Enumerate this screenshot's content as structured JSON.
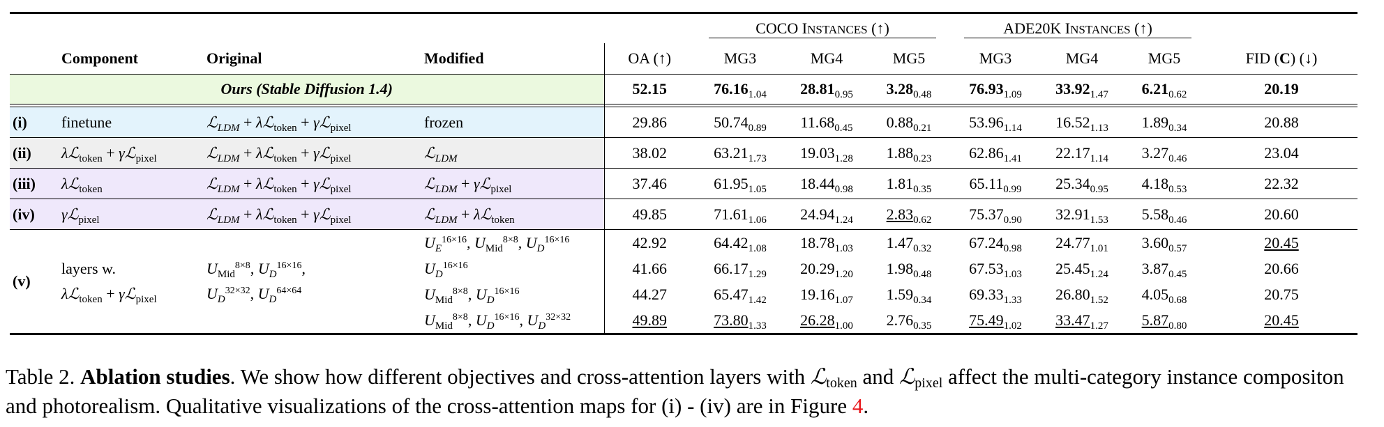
{
  "headers": {
    "group_coco": "COCO Instances (↑)",
    "group_ade": "ADE20K Instances (↑)",
    "component": "Component",
    "original": "Original",
    "modified": "Modified",
    "oa": "OA (↑)",
    "mg3": "MG3",
    "mg4": "MG4",
    "mg5": "MG5",
    "fid": "FID (C) (↓)"
  },
  "ours": {
    "label": "Ours (Stable Diffusion 1.4)",
    "oa": "52.15",
    "coco": [
      [
        "76.16",
        "1.04"
      ],
      [
        "28.81",
        "0.95"
      ],
      [
        "3.28",
        "0.48"
      ]
    ],
    "ade": [
      [
        "76.93",
        "1.09"
      ],
      [
        "33.92",
        "1.47"
      ],
      [
        "6.21",
        "0.62"
      ]
    ],
    "fid": "20.19"
  },
  "rows": [
    {
      "id": "(i)",
      "component": "finetune",
      "original": "ℒLDM + λℒtoken + γℒpixel",
      "modified": "frozen",
      "oa": "29.86",
      "coco": [
        [
          "50.74",
          "0.89"
        ],
        [
          "11.68",
          "0.45"
        ],
        [
          "0.88",
          "0.21"
        ]
      ],
      "ade": [
        [
          "53.96",
          "1.14"
        ],
        [
          "16.52",
          "1.13"
        ],
        [
          "1.89",
          "0.34"
        ]
      ],
      "fid": "20.88"
    },
    {
      "id": "(ii)",
      "component": "λℒtoken + γℒpixel",
      "original": "ℒLDM + λℒtoken + γℒpixel",
      "modified": "ℒLDM",
      "oa": "38.02",
      "coco": [
        [
          "63.21",
          "1.73"
        ],
        [
          "19.03",
          "1.28"
        ],
        [
          "1.88",
          "0.23"
        ]
      ],
      "ade": [
        [
          "62.86",
          "1.41"
        ],
        [
          "22.17",
          "1.14"
        ],
        [
          "3.27",
          "0.46"
        ]
      ],
      "fid": "23.04"
    },
    {
      "id": "(iii)",
      "component": "λℒtoken",
      "original": "ℒLDM + λℒtoken + γℒpixel",
      "modified": "ℒLDM + γℒpixel",
      "oa": "37.46",
      "coco": [
        [
          "61.95",
          "1.05"
        ],
        [
          "18.44",
          "0.98"
        ],
        [
          "1.81",
          "0.35"
        ]
      ],
      "ade": [
        [
          "65.11",
          "0.99"
        ],
        [
          "25.34",
          "0.95"
        ],
        [
          "4.18",
          "0.53"
        ]
      ],
      "fid": "22.32"
    },
    {
      "id": "(iv)",
      "component": "γℒpixel",
      "original": "ℒLDM + λℒtoken + γℒpixel",
      "modified": "ℒLDM + λℒtoken",
      "oa": "49.85",
      "coco": [
        [
          "71.61",
          "1.06"
        ],
        [
          "24.94",
          "1.24"
        ],
        [
          "2.83",
          "0.62"
        ]
      ],
      "ade": [
        [
          "75.37",
          "0.90"
        ],
        [
          "32.91",
          "1.53"
        ],
        [
          "5.58",
          "0.46"
        ]
      ],
      "fid": "20.60"
    }
  ],
  "v": {
    "id": "(v)",
    "component_line1": "layers w.",
    "component_line2": "λℒtoken + γℒpixel",
    "original_line1": "U_Mid^8×8, U_D^16×16,",
    "original_line2": "U_D^32×32, U_D^64×64",
    "rows": [
      {
        "modified": "U_E^16×16, U_Mid^8×8, U_D^16×16",
        "oa": "42.92",
        "coco": [
          [
            "64.42",
            "1.08"
          ],
          [
            "18.78",
            "1.03"
          ],
          [
            "1.47",
            "0.32"
          ]
        ],
        "ade": [
          [
            "67.24",
            "0.98"
          ],
          [
            "24.77",
            "1.01"
          ],
          [
            "3.60",
            "0.57"
          ]
        ],
        "fid": "20.45"
      },
      {
        "modified": "U_D^16×16",
        "oa": "41.66",
        "coco": [
          [
            "66.17",
            "1.29"
          ],
          [
            "20.29",
            "1.20"
          ],
          [
            "1.98",
            "0.48"
          ]
        ],
        "ade": [
          [
            "67.53",
            "1.03"
          ],
          [
            "25.45",
            "1.24"
          ],
          [
            "3.87",
            "0.45"
          ]
        ],
        "fid": "20.66"
      },
      {
        "modified": "U_Mid^8×8, U_D^16×16",
        "oa": "44.27",
        "coco": [
          [
            "65.47",
            "1.42"
          ],
          [
            "19.16",
            "1.07"
          ],
          [
            "1.59",
            "0.34"
          ]
        ],
        "ade": [
          [
            "69.33",
            "1.33"
          ],
          [
            "26.80",
            "1.52"
          ],
          [
            "4.05",
            "0.68"
          ]
        ],
        "fid": "20.75"
      },
      {
        "modified": "U_Mid^8×8, U_D^16×16, U_D^32×32",
        "oa": "49.89",
        "coco": [
          [
            "73.80",
            "1.33"
          ],
          [
            "26.28",
            "1.00"
          ],
          [
            "2.76",
            "0.35"
          ]
        ],
        "ade": [
          [
            "75.49",
            "1.02"
          ],
          [
            "33.47",
            "1.27"
          ],
          [
            "5.87",
            "0.80"
          ]
        ],
        "fid": "20.45"
      }
    ]
  },
  "caption": {
    "label": "Table 2.",
    "bold": "Ablation studies",
    "text_before": ". We show how different objectives and cross-attention layers with ",
    "l_token": "ℒtoken",
    "and": " and ",
    "l_pixel": "ℒpixel",
    "text_after": " affect the multi-category instance compositon and photorealism. Qualitative visualizations of the cross-attention maps for (i) - (iv) are in Figure ",
    "figure_ref": "4",
    "end": "."
  }
}
